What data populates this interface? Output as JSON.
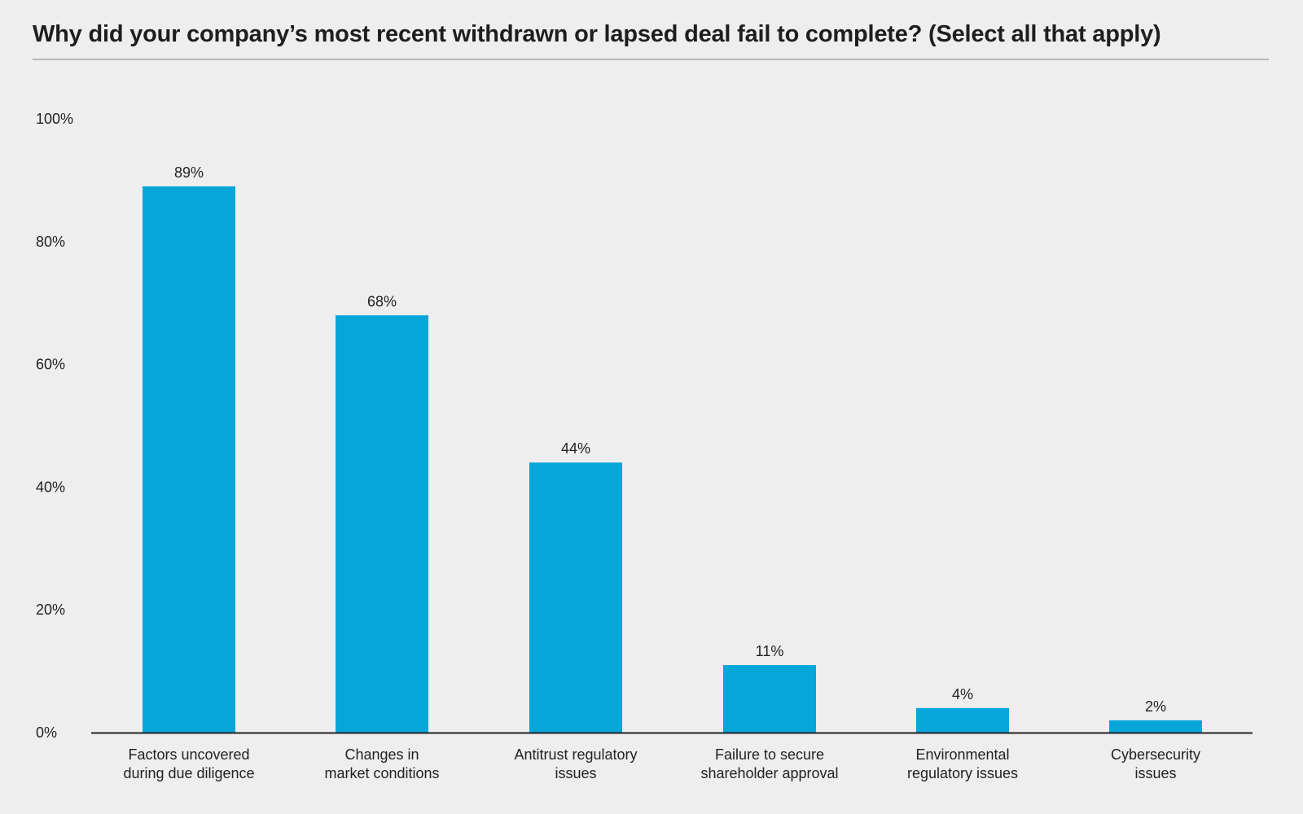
{
  "chart_data": {
    "type": "bar",
    "title": "Why did your company’s most recent withdrawn or lapsed deal fail to complete? (Select all that apply)",
    "xlabel": "",
    "ylabel": "",
    "ylim": [
      0,
      100
    ],
    "grid": false,
    "yticks": [
      "0%",
      "20%",
      "40%",
      "60%",
      "80%",
      "100%"
    ],
    "ytick_values": [
      0,
      20,
      40,
      60,
      80,
      100
    ],
    "categories": [
      [
        "Factors uncovered",
        "during due diligence"
      ],
      [
        "Changes in",
        "market conditions"
      ],
      [
        "Antitrust regulatory",
        "issues"
      ],
      [
        "Failure to secure",
        "shareholder approval"
      ],
      [
        "Environmental",
        "regulatory issues"
      ],
      [
        "Cybersecurity",
        "issues"
      ]
    ],
    "values": [
      89,
      68,
      44,
      11,
      4,
      2
    ],
    "data_labels": [
      "89%",
      "68%",
      "44%",
      "11%",
      "4%",
      "2%"
    ],
    "bar_color": "#06a6d9",
    "axis_color": "#222222"
  }
}
